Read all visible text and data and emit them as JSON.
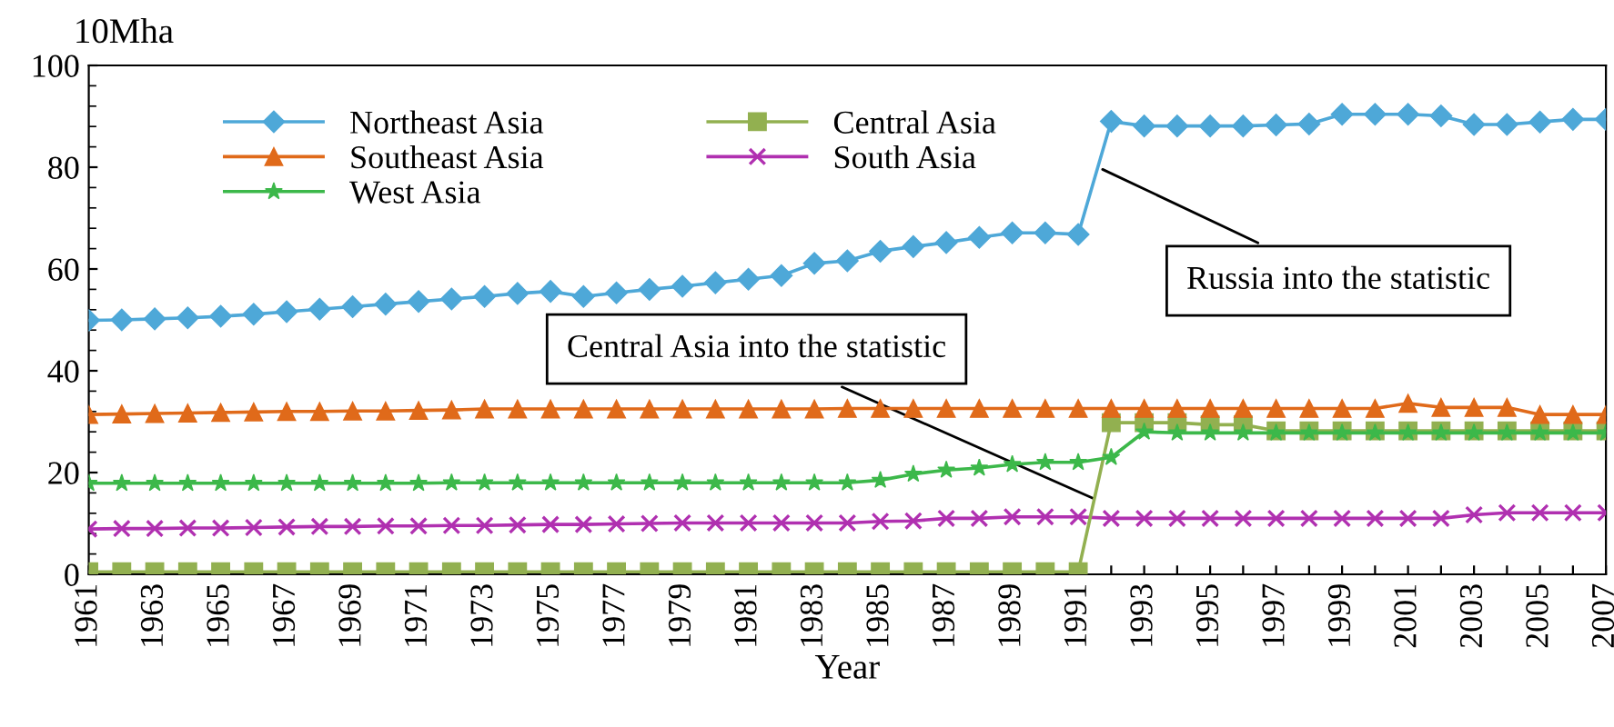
{
  "chart_data": {
    "type": "line",
    "xlabel": "Year",
    "ylabel": "10Mha",
    "x": [
      1961,
      1962,
      1963,
      1964,
      1965,
      1966,
      1967,
      1968,
      1969,
      1970,
      1971,
      1972,
      1973,
      1974,
      1975,
      1976,
      1977,
      1978,
      1979,
      1980,
      1981,
      1982,
      1983,
      1984,
      1985,
      1986,
      1987,
      1988,
      1989,
      1990,
      1991,
      1992,
      1993,
      1994,
      1995,
      1996,
      1997,
      1998,
      1999,
      2000,
      2001,
      2002,
      2003,
      2004,
      2005,
      2006,
      2007
    ],
    "series": [
      {
        "name": "Northeast Asia",
        "color": "#4ea8d8",
        "marker": "diamond",
        "values": [
          49.9,
          50.0,
          50.2,
          50.4,
          50.7,
          51.1,
          51.6,
          52.1,
          52.6,
          53.1,
          53.6,
          54.1,
          54.6,
          55.2,
          55.6,
          54.6,
          55.3,
          56.0,
          56.6,
          57.3,
          58.0,
          58.7,
          61.1,
          61.6,
          63.5,
          64.4,
          65.2,
          66.2,
          67.1,
          67.1,
          66.8,
          89.0,
          88.1,
          88.1,
          88.1,
          88.1,
          88.3,
          88.5,
          90.4,
          90.4,
          90.4,
          90.1,
          88.4,
          88.4,
          88.9,
          89.4,
          89.4
        ]
      },
      {
        "name": "Southeast Asia",
        "color": "#e06a1a",
        "marker": "triangle",
        "values": [
          31.4,
          31.5,
          31.6,
          31.7,
          31.8,
          31.9,
          32.0,
          32.0,
          32.1,
          32.1,
          32.2,
          32.3,
          32.5,
          32.5,
          32.5,
          32.5,
          32.5,
          32.5,
          32.5,
          32.5,
          32.5,
          32.5,
          32.5,
          32.6,
          32.6,
          32.6,
          32.6,
          32.6,
          32.6,
          32.6,
          32.6,
          32.6,
          32.6,
          32.6,
          32.6,
          32.6,
          32.6,
          32.6,
          32.6,
          32.6,
          33.6,
          32.8,
          32.8,
          32.8,
          31.4,
          31.4,
          31.4
        ]
      },
      {
        "name": "West Asia",
        "color": "#3cb84a",
        "marker": "star",
        "values": [
          17.9,
          17.9,
          17.9,
          17.9,
          17.9,
          17.9,
          17.9,
          17.9,
          17.9,
          17.9,
          17.9,
          18.0,
          18.0,
          18.0,
          18.0,
          18.0,
          18.0,
          18.0,
          18.0,
          18.0,
          18.0,
          18.0,
          18.0,
          18.0,
          18.5,
          19.7,
          20.5,
          20.9,
          21.6,
          22.0,
          22.0,
          23.0,
          28.0,
          27.8,
          27.8,
          27.8,
          27.8,
          27.8,
          27.8,
          27.8,
          27.8,
          27.8,
          27.8,
          27.8,
          27.8,
          27.8,
          27.8
        ]
      },
      {
        "name": "Central Asia",
        "color": "#92b050",
        "marker": "square",
        "values": [
          0.5,
          0.5,
          0.5,
          0.5,
          0.5,
          0.5,
          0.5,
          0.5,
          0.5,
          0.5,
          0.5,
          0.5,
          0.5,
          0.5,
          0.5,
          0.5,
          0.5,
          0.5,
          0.5,
          0.5,
          0.5,
          0.5,
          0.5,
          0.5,
          0.5,
          0.5,
          0.5,
          0.5,
          0.5,
          0.5,
          0.5,
          29.8,
          29.8,
          29.8,
          29.4,
          29.4,
          28.2,
          28.2,
          28.2,
          28.2,
          28.2,
          28.2,
          28.2,
          28.2,
          28.2,
          28.2,
          28.2
        ]
      },
      {
        "name": "South Asia",
        "color": "#b030b0",
        "marker": "cross",
        "values": [
          8.9,
          9.0,
          9.0,
          9.1,
          9.1,
          9.2,
          9.3,
          9.4,
          9.4,
          9.5,
          9.5,
          9.6,
          9.6,
          9.7,
          9.8,
          9.8,
          9.9,
          10.0,
          10.1,
          10.1,
          10.1,
          10.1,
          10.1,
          10.1,
          10.4,
          10.5,
          11.0,
          11.0,
          11.3,
          11.3,
          11.3,
          11.0,
          11.0,
          11.0,
          11.0,
          11.0,
          11.0,
          11.0,
          11.0,
          11.0,
          11.0,
          11.0,
          11.7,
          12.1,
          12.1,
          12.1,
          12.1
        ]
      }
    ],
    "xlim": [
      1961,
      2007
    ],
    "ylim": [
      0,
      100
    ],
    "yticks": [
      0,
      20,
      40,
      60,
      80,
      100
    ],
    "xticks": [
      1961,
      {
        "value": 1962,
        "label": null
      },
      1963,
      {
        "value": 1964,
        "label": null
      },
      1965,
      {
        "value": 1966,
        "label": null
      },
      1967,
      {
        "value": 1968,
        "label": null
      },
      1969,
      {
        "value": 1970,
        "label": null
      },
      1971,
      {
        "value": 1972,
        "label": null
      },
      1973,
      {
        "value": 1974,
        "label": null
      },
      1975,
      {
        "value": 1976,
        "label": null
      },
      1977,
      {
        "value": 1978,
        "label": null
      },
      1979,
      {
        "value": 1980,
        "label": null
      },
      1981,
      {
        "value": 1982,
        "label": null
      },
      1983,
      {
        "value": 1984,
        "label": null
      },
      1985,
      {
        "value": 1986,
        "label": null
      },
      1987,
      {
        "value": 1988,
        "label": null
      },
      1989,
      {
        "value": 1990,
        "label": null
      },
      1991,
      {
        "value": 1992,
        "label": null
      },
      1993,
      {
        "value": 1994,
        "label": null
      },
      1995,
      {
        "value": 1996,
        "label": null
      },
      1997,
      {
        "value": 1998,
        "label": null
      },
      1999,
      {
        "value": 2000,
        "label": null
      },
      2001,
      {
        "value": 2002,
        "label": null
      },
      2003,
      {
        "value": 2004,
        "label": null
      },
      2005,
      {
        "value": 2006,
        "label": null
      },
      2007
    ],
    "annotations": [
      {
        "text": "Russia into the statistic",
        "x": 1991.6,
        "y": 80
      },
      {
        "text": "Central Asia into the statistic",
        "x": 1991.6,
        "y": 14.5
      }
    ],
    "grid": false,
    "legend": "top left",
    "line_style": "solid"
  }
}
